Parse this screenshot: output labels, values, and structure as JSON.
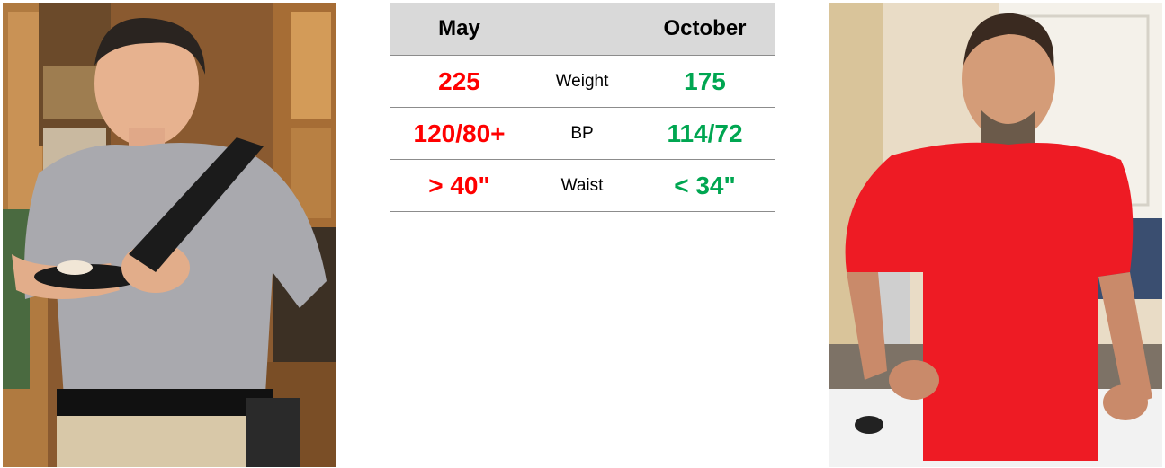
{
  "colors": {
    "before": "#ff0000",
    "after": "#00a651",
    "header_bg": "#d9d9d9"
  },
  "photos": {
    "before": {
      "description": "man-in-gray-tshirt-eating"
    },
    "after": {
      "description": "man-in-red-tshirt-smiling"
    }
  },
  "table": {
    "headers": {
      "before": "May",
      "metric": "",
      "after": "October"
    },
    "rows": [
      {
        "before": "225",
        "metric": "Weight",
        "after": "175"
      },
      {
        "before": "120/80+",
        "metric": "BP",
        "after": "114/72"
      },
      {
        "before": "> 40\"",
        "metric": "Waist",
        "after": "< 34\""
      }
    ]
  }
}
